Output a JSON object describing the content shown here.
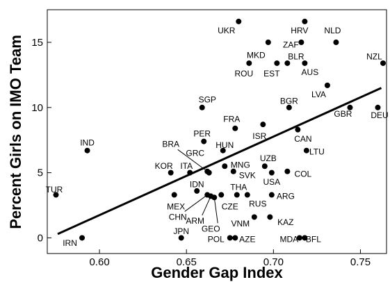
{
  "chart_data": {
    "type": "scatter",
    "title": "",
    "xlabel": "Gender Gap Index",
    "ylabel": "Percent Girls on IMO Team",
    "xlim": [
      0.57,
      0.765
    ],
    "ylim": [
      -1.2,
      17.5
    ],
    "xticks": [
      {
        "value": 0.6,
        "label": "0.60"
      },
      {
        "value": 0.65,
        "label": "0.65"
      },
      {
        "value": 0.7,
        "label": "0.70"
      },
      {
        "value": 0.75,
        "label": "0.75"
      }
    ],
    "yticks": [
      {
        "value": 0,
        "label": "0"
      },
      {
        "value": 5,
        "label": "5"
      },
      {
        "value": 10,
        "label": "10"
      },
      {
        "value": 15,
        "label": "15"
      }
    ],
    "grid": false,
    "trendline": {
      "x": [
        0.576,
        0.762
      ],
      "y": [
        0.3,
        11.5
      ]
    },
    "points": [
      {
        "label": "UKR",
        "x": 0.68,
        "y": 16.6,
        "lx": 0.673,
        "ly": 15.9
      },
      {
        "label": "HRV",
        "x": 0.718,
        "y": 16.6,
        "lx": 0.715,
        "ly": 15.9
      },
      {
        "label": "NLD",
        "x": 0.736,
        "y": 15.0,
        "lx": 0.734,
        "ly": 15.9
      },
      {
        "label": "ZAF",
        "x": 0.716,
        "y": 15.0,
        "lx": 0.71,
        "ly": 14.8
      },
      {
        "label": "MKD",
        "x": 0.697,
        "y": 15.0,
        "lx": 0.69,
        "ly": 14.0
      },
      {
        "label": "NZL",
        "x": 0.763,
        "y": 13.4,
        "lx": 0.758,
        "ly": 13.9
      },
      {
        "label": "BLR",
        "x": 0.708,
        "y": 13.4,
        "lx": 0.713,
        "ly": 13.9
      },
      {
        "label": "ROU",
        "x": 0.686,
        "y": 13.4,
        "lx": 0.683,
        "ly": 12.6
      },
      {
        "label": "EST",
        "x": 0.702,
        "y": 13.4,
        "lx": 0.699,
        "ly": 12.6
      },
      {
        "label": "AUS",
        "x": 0.718,
        "y": 13.4,
        "lx": 0.721,
        "ly": 12.7
      },
      {
        "label": "LVA",
        "x": 0.731,
        "y": 11.7,
        "lx": 0.726,
        "ly": 11.0
      },
      {
        "label": "SGP",
        "x": 0.659,
        "y": 10.0,
        "lx": 0.662,
        "ly": 10.6
      },
      {
        "label": "BGR",
        "x": 0.709,
        "y": 10.0,
        "lx": 0.709,
        "ly": 10.5
      },
      {
        "label": "GBR",
        "x": 0.744,
        "y": 10.0,
        "lx": 0.74,
        "ly": 9.5
      },
      {
        "label": "DEU",
        "x": 0.76,
        "y": 10.0,
        "lx": 0.761,
        "ly": 9.4
      },
      {
        "label": "FRA",
        "x": 0.678,
        "y": 8.4,
        "lx": 0.676,
        "ly": 9.1
      },
      {
        "label": "ISR",
        "x": 0.694,
        "y": 8.7,
        "lx": 0.692,
        "ly": 7.8
      },
      {
        "label": "CAN",
        "x": 0.714,
        "y": 8.3,
        "lx": 0.717,
        "ly": 7.6
      },
      {
        "label": "LTU",
        "x": 0.719,
        "y": 6.7,
        "lx": 0.725,
        "ly": 6.6
      },
      {
        "label": "IND",
        "x": 0.593,
        "y": 6.7,
        "lx": 0.593,
        "ly": 7.3
      },
      {
        "label": "PER",
        "x": 0.66,
        "y": 7.4,
        "lx": 0.659,
        "ly": 8.0
      },
      {
        "label": "HUN",
        "x": 0.671,
        "y": 6.7,
        "lx": 0.672,
        "ly": 7.1
      },
      {
        "label": "BRA",
        "x": 0.663,
        "y": 5.0,
        "lx": 0.641,
        "ly": 7.2
      },
      {
        "label": "GRC",
        "x": 0.662,
        "y": 5.1,
        "lx": 0.655,
        "ly": 6.5
      },
      {
        "label": "KOR",
        "x": 0.641,
        "y": 5.0,
        "lx": 0.637,
        "ly": 5.5
      },
      {
        "label": "ITA",
        "x": 0.652,
        "y": 5.0,
        "lx": 0.65,
        "ly": 5.5
      },
      {
        "label": "MNG",
        "x": 0.672,
        "y": 5.5,
        "lx": 0.681,
        "ly": 5.6
      },
      {
        "label": "UZB",
        "x": 0.695,
        "y": 5.5,
        "lx": 0.697,
        "ly": 6.1
      },
      {
        "label": "SVK",
        "x": 0.677,
        "y": 5.1,
        "lx": 0.685,
        "ly": 4.8
      },
      {
        "label": "COL",
        "x": 0.708,
        "y": 5.1,
        "lx": 0.717,
        "ly": 4.9
      },
      {
        "label": "USA",
        "x": 0.699,
        "y": 5.0,
        "lx": 0.699,
        "ly": 4.3
      },
      {
        "label": "IDN",
        "x": 0.656,
        "y": 3.6,
        "lx": 0.656,
        "ly": 4.1
      },
      {
        "label": "THA",
        "x": 0.679,
        "y": 3.3,
        "lx": 0.68,
        "ly": 3.9
      },
      {
        "label": "RUS",
        "x": 0.685,
        "y": 3.3,
        "lx": 0.691,
        "ly": 2.6
      },
      {
        "label": "ARG",
        "x": 0.699,
        "y": 3.3,
        "lx": 0.707,
        "ly": 3.2
      },
      {
        "label": "MEX",
        "x": 0.643,
        "y": 3.3,
        "lx": 0.644,
        "ly": 2.4
      },
      {
        "label": "CZE",
        "x": 0.67,
        "y": 3.3,
        "lx": 0.675,
        "ly": 2.4
      },
      {
        "label": "CHN",
        "x": 0.662,
        "y": 3.3,
        "lx": 0.645,
        "ly": 1.6
      },
      {
        "label": "ARM",
        "x": 0.664,
        "y": 3.2,
        "lx": 0.655,
        "ly": 1.3
      },
      {
        "label": "GEO",
        "x": 0.666,
        "y": 3.1,
        "lx": 0.664,
        "ly": 0.7
      },
      {
        "label": "VNM",
        "x": 0.689,
        "y": 1.6,
        "lx": 0.681,
        "ly": 1.1
      },
      {
        "label": "KAZ",
        "x": 0.698,
        "y": 1.6,
        "lx": 0.707,
        "ly": 1.2
      },
      {
        "label": "JPN",
        "x": 0.647,
        "y": 0.0,
        "lx": 0.647,
        "ly": 0.5
      },
      {
        "label": "POL",
        "x": 0.675,
        "y": 0.0,
        "lx": 0.667,
        "ly": -0.1
      },
      {
        "label": "AZE",
        "x": 0.678,
        "y": 0.0,
        "lx": 0.685,
        "ly": -0.1
      },
      {
        "label": "MDA",
        "x": 0.715,
        "y": 0.0,
        "lx": 0.709,
        "ly": -0.1
      },
      {
        "label": "BFL",
        "x": 0.718,
        "y": 0.0,
        "lx": 0.723,
        "ly": -0.1
      },
      {
        "label": "TUR",
        "x": 0.575,
        "y": 3.3,
        "lx": 0.574,
        "ly": 3.7
      },
      {
        "label": "IRN",
        "x": 0.59,
        "y": 0.0,
        "lx": 0.583,
        "ly": -0.4
      }
    ]
  }
}
